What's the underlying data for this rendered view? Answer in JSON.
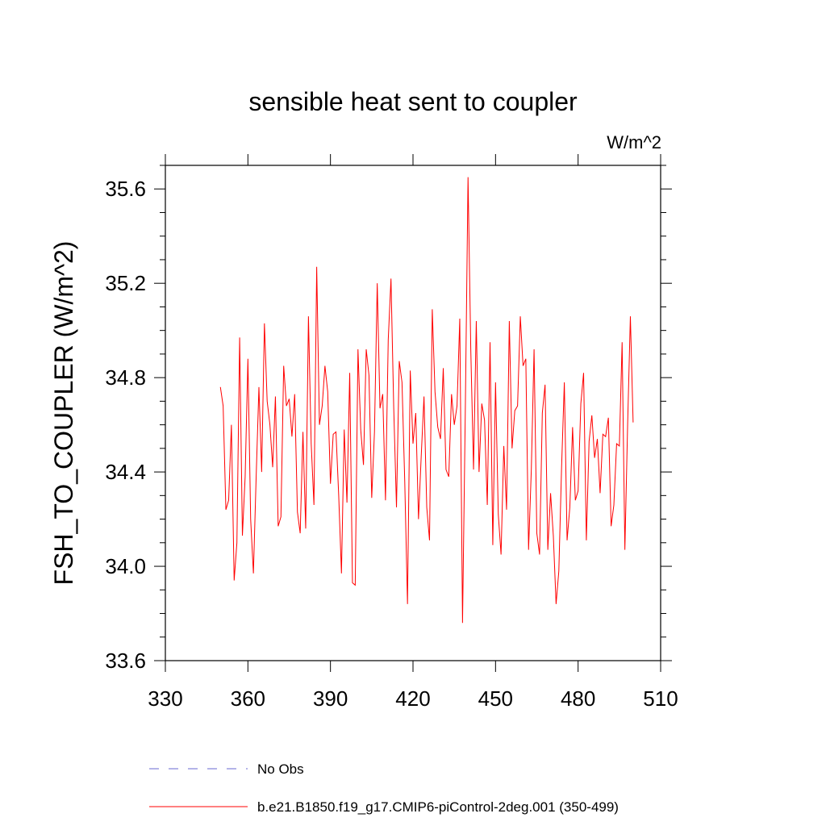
{
  "chart_data": {
    "type": "line",
    "title": "sensible heat sent to coupler",
    "units_label": "W/m^2",
    "ylabel": "FSH_TO_COUPLER  (W/m^2)",
    "xlabel": "",
    "xlim": [
      330,
      510
    ],
    "ylim": [
      33.6,
      35.7
    ],
    "x_ticks": [
      330,
      360,
      390,
      420,
      450,
      480,
      510
    ],
    "x_tick_labels": [
      "330",
      "360",
      "390",
      "420",
      "450",
      "480",
      "510"
    ],
    "y_ticks": [
      33.6,
      34.0,
      34.4,
      34.8,
      35.2,
      35.6
    ],
    "y_tick_labels": [
      "33.6",
      "34.0",
      "34.4",
      "34.8",
      "35.2",
      "35.6"
    ],
    "grid": false,
    "legend_position": "bottom",
    "legend": [
      {
        "label": "No Obs",
        "color": "#6a6ad0",
        "style": "dashed"
      },
      {
        "label": "b.e21.B1850.f19_g17.CMIP6-piControl-2deg.001 (350-499)",
        "color": "#ff0000",
        "style": "solid"
      }
    ],
    "series": [
      {
        "name": "b.e21.B1850.f19_g17.CMIP6-piControl-2deg.001 (350-499)",
        "color": "#ff0000",
        "x_start": 350,
        "x_step": 1,
        "values": [
          34.76,
          34.68,
          34.24,
          34.28,
          34.6,
          33.94,
          34.1,
          34.97,
          34.13,
          34.38,
          34.88,
          34.2,
          33.97,
          34.38,
          34.76,
          34.4,
          35.03,
          34.7,
          34.6,
          34.42,
          34.72,
          34.17,
          34.21,
          34.85,
          34.68,
          34.71,
          34.55,
          34.73,
          34.23,
          34.14,
          34.57,
          34.16,
          35.06,
          34.52,
          34.26,
          35.27,
          34.6,
          34.68,
          34.85,
          34.74,
          34.35,
          34.56,
          34.57,
          34.3,
          33.97,
          34.58,
          34.27,
          34.82,
          33.93,
          33.92,
          34.92,
          34.58,
          34.43,
          34.92,
          34.81,
          34.29,
          34.57,
          35.2,
          34.67,
          34.73,
          34.28,
          34.96,
          35.22,
          34.67,
          34.25,
          34.87,
          34.78,
          34.36,
          33.84,
          34.83,
          34.52,
          34.65,
          34.2,
          34.47,
          34.72,
          34.25,
          34.11,
          35.09,
          34.74,
          34.59,
          34.54,
          34.84,
          34.41,
          34.38,
          34.73,
          34.6,
          34.68,
          35.05,
          33.76,
          34.65,
          35.65,
          34.92,
          34.41,
          35.04,
          34.4,
          34.69,
          34.62,
          34.26,
          34.95,
          34.09,
          34.78,
          34.22,
          34.05,
          34.51,
          34.24,
          35.04,
          34.5,
          34.66,
          34.68,
          35.06,
          34.85,
          34.88,
          34.07,
          34.41,
          34.92,
          34.14,
          34.05,
          34.65,
          34.77,
          34.07,
          34.31,
          34.13,
          33.84,
          33.98,
          34.42,
          34.78,
          34.11,
          34.25,
          34.59,
          34.28,
          34.32,
          34.69,
          34.82,
          34.11,
          34.53,
          34.64,
          34.46,
          34.54,
          34.31,
          34.56,
          34.55,
          34.63,
          34.17,
          34.26,
          34.52,
          34.51,
          34.95,
          34.07,
          34.6,
          35.06,
          34.61
        ]
      }
    ]
  }
}
